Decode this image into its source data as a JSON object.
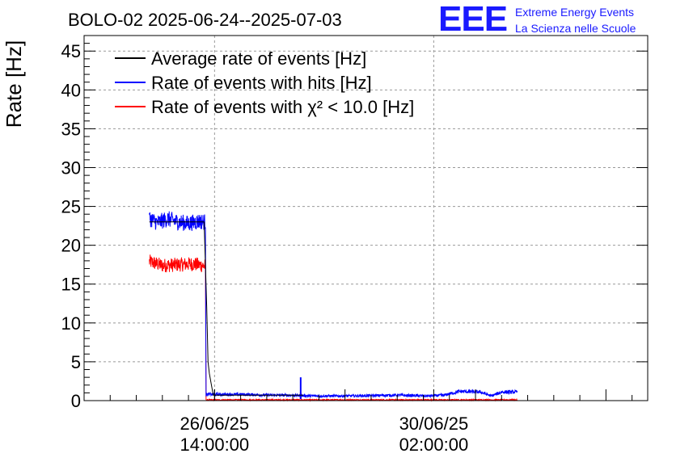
{
  "title": "BOLO-02 2025-06-24--2025-07-03",
  "logo": {
    "mark": "EEE",
    "line1": "Extreme Energy Events",
    "line2": "La Scienza nelle Scuole",
    "color": "#1a1aff"
  },
  "chart_data": {
    "type": "line",
    "title": "BOLO-02 2025-06-24--2025-07-03",
    "ylabel": "Rate [Hz]",
    "xlabel": "",
    "ylim": [
      0,
      47
    ],
    "y_ticks": [
      0,
      5,
      10,
      15,
      20,
      25,
      30,
      35,
      40,
      45
    ],
    "x_axis": {
      "type": "date",
      "range": [
        "2025-06-24T12:00:00",
        "2025-07-03T12:00:00"
      ],
      "tick_labels": [
        {
          "at": "2025-06-26T14:00:00",
          "line1": "26/06/25",
          "line2": "14:00:00"
        },
        {
          "at": "2025-06-30T02:00:00",
          "line1": "30/06/25",
          "line2": "02:00:00"
        }
      ]
    },
    "grid": true,
    "legend_placement": "top-left",
    "series": [
      {
        "name": "Average rate of events [Hz]",
        "color": "#000000",
        "points": [
          [
            "2025-06-25T13:00:00",
            23.0
          ],
          [
            "2025-06-26T00:00:00",
            23.0
          ],
          [
            "2025-06-26T10:00:00",
            23.0
          ],
          [
            "2025-06-26T11:00:00",
            12.0
          ],
          [
            "2025-06-26T11:30:00",
            5.0
          ],
          [
            "2025-06-26T12:00:00",
            3.5
          ],
          [
            "2025-06-26T13:30:00",
            0.7
          ],
          [
            "2025-06-28T00:00:00",
            0.7
          ]
        ]
      },
      {
        "name": "Rate of events with hits [Hz]",
        "color": "#0000ff",
        "points": [
          [
            "2025-06-25T13:00:00",
            23.5
          ],
          [
            "2025-06-25T16:00:00",
            22.9
          ],
          [
            "2025-06-25T20:00:00",
            23.4
          ],
          [
            "2025-06-26T00:00:00",
            23.0
          ],
          [
            "2025-06-26T04:00:00",
            22.8
          ],
          [
            "2025-06-26T08:00:00",
            23.1
          ],
          [
            "2025-06-26T10:30:00",
            23.0
          ],
          [
            "2025-06-26T10:45:00",
            0.8
          ],
          [
            "2025-06-27T00:00:00",
            0.8
          ],
          [
            "2025-06-27T12:00:00",
            0.7
          ],
          [
            "2025-06-27T18:00:00",
            0.7
          ],
          [
            "2025-06-28T04:00:00",
            0.6
          ],
          [
            "2025-06-28T18:00:00",
            0.6
          ],
          [
            "2025-06-29T12:00:00",
            0.7
          ],
          [
            "2025-06-30T00:00:00",
            0.6
          ],
          [
            "2025-06-30T06:00:00",
            0.7
          ],
          [
            "2025-06-30T12:00:00",
            1.2
          ],
          [
            "2025-06-30T20:00:00",
            1.1
          ],
          [
            "2025-07-01T00:00:00",
            0.6
          ],
          [
            "2025-07-01T04:00:00",
            1.1
          ],
          [
            "2025-07-01T10:00:00",
            1.1
          ]
        ],
        "spike": {
          "at": "2025-06-27T23:00:00",
          "value": 3.0
        }
      },
      {
        "name": "Rate of events with χ² < 10.0 [Hz]",
        "color": "#ff0000",
        "points": [
          [
            "2025-06-25T13:00:00",
            17.9
          ],
          [
            "2025-06-25T18:00:00",
            17.4
          ],
          [
            "2025-06-26T00:00:00",
            17.5
          ],
          [
            "2025-06-26T06:00:00",
            17.6
          ],
          [
            "2025-06-26T10:30:00",
            17.3
          ],
          [
            "2025-06-26T10:45:00",
            0.1
          ],
          [
            "2025-07-01T10:00:00",
            0.1
          ]
        ],
        "spike": {
          "at": "2025-06-27T23:00:00",
          "value": 1.0
        }
      }
    ]
  }
}
